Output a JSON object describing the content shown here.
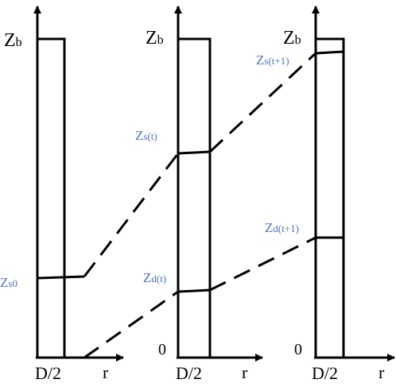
{
  "colors": {
    "line": "#000000",
    "label_blue": "#4a72c0",
    "background": "#ffffff"
  },
  "panels": [
    {
      "zb_main": "Z",
      "zb_sub": "b",
      "xlabel": "D/2",
      "r_label": "r",
      "origin": "",
      "level_label": "Zs0"
    },
    {
      "zb_main": "Z",
      "zb_sub": "b",
      "xlabel": "D/2",
      "r_label": "r",
      "origin": "0",
      "upper_label": "Zs(t)",
      "lower_label": "Zd(t)"
    },
    {
      "zb_main": "Z",
      "zb_sub": "b",
      "xlabel": "D/2",
      "r_label": "r",
      "origin": "0",
      "upper_label": "Zs(t+1)",
      "lower_label": "Zd(t+1)"
    }
  ],
  "labels": {
    "zs0_main": "Z",
    "zs0_sub": "s0",
    "zst_main": "Z",
    "zst_sub": "s(t)",
    "zdt_main": "Z",
    "zdt_sub": "d(t)",
    "zst1_main": "Z",
    "zst1_sub": "s(t+1)",
    "zdt1_main": "Z",
    "zdt1_sub": "d(t+1)"
  }
}
